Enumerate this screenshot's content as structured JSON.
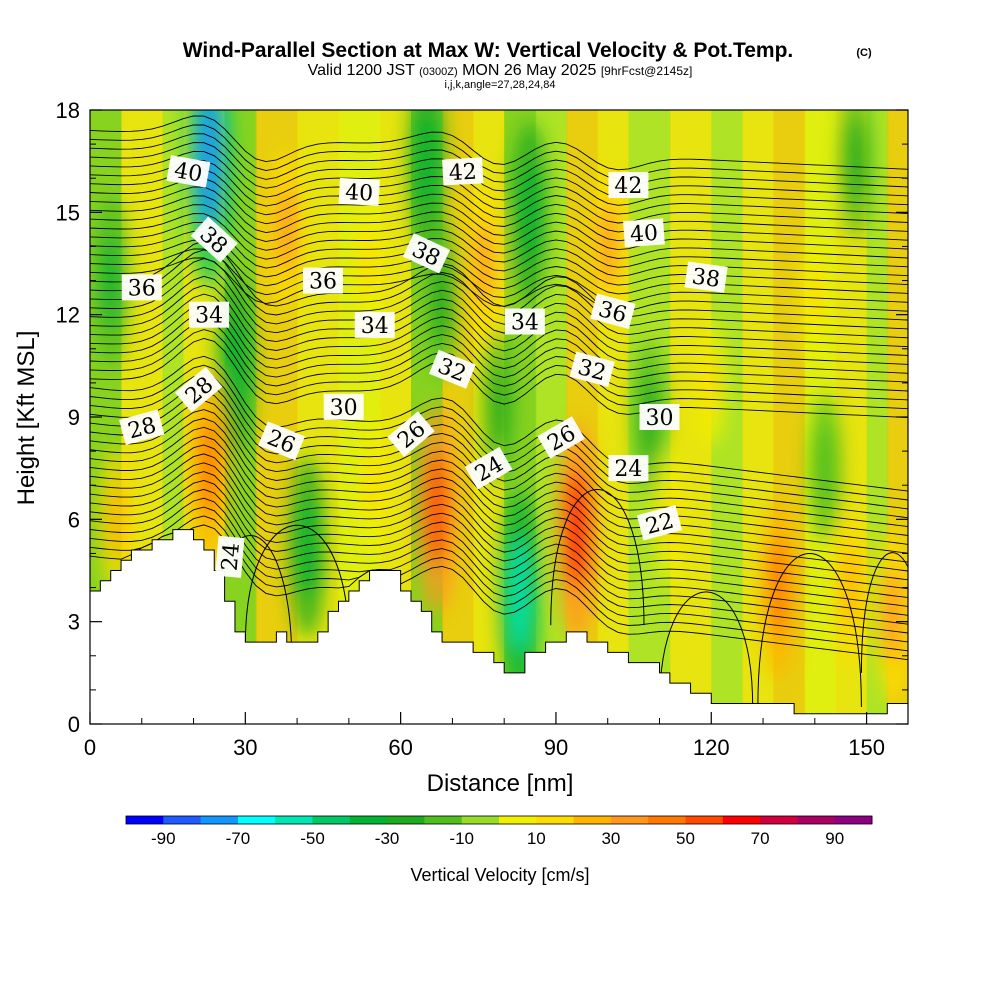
{
  "header": {
    "title": "Wind-Parallel Section at Max W: Vertical Velocity & Pot.Temp.",
    "copyright": "(C)",
    "valid_prefix": "Valid 1200 JST",
    "valid_utc": "(0300Z)",
    "valid_date": "MON 26 May 2025",
    "forecast_tag": "[9hrFcst@2145z]",
    "grid_info": "i,j,k,angle=27,28,24,84"
  },
  "chart_data": {
    "type": "heatmap",
    "title": "Wind-Parallel Section at Max W: Vertical Velocity & Pot.Temp.",
    "xlabel": "Distance [nm]",
    "ylabel": "Height [Kft MSL]",
    "xlim": [
      0,
      158
    ],
    "ylim": [
      0,
      18
    ],
    "x_ticks": [
      "0",
      "30",
      "60",
      "90",
      "120",
      "150"
    ],
    "y_ticks": [
      "0",
      "3",
      "6",
      "9",
      "12",
      "15",
      "18"
    ],
    "colorbar": {
      "label": "Vertical Velocity [cm/s]",
      "ticks": [
        "-90",
        "-70",
        "-50",
        "-30",
        "-10",
        "10",
        "30",
        "50",
        "70",
        "90"
      ],
      "levels": [
        -100,
        -90,
        -80,
        -70,
        -60,
        -50,
        -40,
        -30,
        -20,
        -10,
        0,
        10,
        20,
        30,
        40,
        50,
        60,
        70,
        80,
        90,
        100
      ],
      "colors": [
        "#0000ff",
        "#1e5aff",
        "#1496ff",
        "#00ffff",
        "#00e6b4",
        "#00c864",
        "#00b432",
        "#1eaa1e",
        "#50be1e",
        "#96dc28",
        "#f0f000",
        "#ffdc00",
        "#ffb400",
        "#ff961e",
        "#ff7800",
        "#ff4a00",
        "#ff0000",
        "#d2003c",
        "#aa0064",
        "#8c0082"
      ]
    },
    "terrain_kft": [
      [
        0,
        3.9
      ],
      [
        3,
        4.2
      ],
      [
        6,
        4.7
      ],
      [
        9,
        5.1
      ],
      [
        12,
        5.3
      ],
      [
        15,
        5.6
      ],
      [
        19,
        5.6
      ],
      [
        22,
        5.2
      ],
      [
        25,
        4.0
      ],
      [
        28,
        2.7
      ],
      [
        30,
        2.3
      ],
      [
        33,
        2.5
      ],
      [
        36,
        2.6
      ],
      [
        40,
        2.3
      ],
      [
        43,
        2.6
      ],
      [
        46,
        3.3
      ],
      [
        49,
        3.9
      ],
      [
        52,
        4.3
      ],
      [
        55,
        4.6
      ],
      [
        58,
        4.4
      ],
      [
        61,
        3.8
      ],
      [
        63,
        3.3
      ],
      [
        65,
        3.0
      ],
      [
        67,
        2.6
      ],
      [
        70,
        2.4
      ],
      [
        73,
        2.3
      ],
      [
        76,
        2.0
      ],
      [
        78,
        1.9
      ],
      [
        80,
        1.5
      ],
      [
        82,
        1.4
      ],
      [
        84,
        2.0
      ],
      [
        87,
        2.2
      ],
      [
        90,
        2.5
      ],
      [
        94,
        2.6
      ],
      [
        97,
        2.4
      ],
      [
        100,
        2.0
      ],
      [
        104,
        1.9
      ],
      [
        108,
        1.7
      ],
      [
        112,
        1.3
      ],
      [
        115,
        1.0
      ],
      [
        118,
        0.8
      ],
      [
        121,
        0.6
      ],
      [
        125,
        0.6
      ],
      [
        130,
        0.5
      ],
      [
        140,
        0.4
      ],
      [
        150,
        0.4
      ],
      [
        155,
        0.5
      ],
      [
        158,
        0.6
      ]
    ],
    "velocity_plumes": [
      {
        "x": 23,
        "z": 16.5,
        "w": -80
      },
      {
        "x": 28,
        "z": 10.5,
        "w": -40
      },
      {
        "x": 4,
        "z": 13.0,
        "w": -35
      },
      {
        "x": 23,
        "z": 7.5,
        "w": 45
      },
      {
        "x": 38,
        "z": 14.5,
        "w": 30
      },
      {
        "x": 42,
        "z": 5.2,
        "w": -40
      },
      {
        "x": 65,
        "z": 16.5,
        "w": -40
      },
      {
        "x": 68,
        "z": 12.5,
        "w": -30
      },
      {
        "x": 67,
        "z": 6.3,
        "w": 55
      },
      {
        "x": 85,
        "z": 15.0,
        "w": -40
      },
      {
        "x": 83,
        "z": 3.8,
        "w": -55
      },
      {
        "x": 79,
        "z": 9.3,
        "w": -25
      },
      {
        "x": 76,
        "z": 13.5,
        "w": 30
      },
      {
        "x": 94,
        "z": 5.7,
        "w": 60
      },
      {
        "x": 100,
        "z": 14.0,
        "w": 30
      },
      {
        "x": 108,
        "z": 9.0,
        "w": -25
      },
      {
        "x": 112,
        "z": 6.0,
        "w": 15
      },
      {
        "x": 120,
        "z": 10.0,
        "w": 10
      },
      {
        "x": 133,
        "z": 4.0,
        "w": 40
      },
      {
        "x": 147,
        "z": 4.0,
        "w": 25
      },
      {
        "x": 155,
        "z": 3.2,
        "w": 35
      },
      {
        "x": 140,
        "z": 12.5,
        "w": 10
      },
      {
        "x": 148,
        "z": 16.5,
        "w": -25
      },
      {
        "x": 142,
        "z": 7.5,
        "w": -20
      },
      {
        "x": 5,
        "z": 6.0,
        "w": 20
      },
      {
        "x": 54,
        "z": 13.5,
        "w": 15
      },
      {
        "x": 55,
        "z": 7.0,
        "w": 15
      }
    ],
    "potential_temperature_labels": [
      {
        "x": 19,
        "z": 16.2,
        "value": "40",
        "angle": 10
      },
      {
        "x": 52,
        "z": 15.6,
        "value": "40",
        "angle": 3
      },
      {
        "x": 72,
        "z": 16.2,
        "value": "42",
        "angle": -3
      },
      {
        "x": 104,
        "z": 15.8,
        "value": "42",
        "angle": 0
      },
      {
        "x": 107,
        "z": 14.4,
        "value": "40",
        "angle": -4
      },
      {
        "x": 24,
        "z": 14.2,
        "value": "38",
        "angle": 42
      },
      {
        "x": 65,
        "z": 13.8,
        "value": "38",
        "angle": 25
      },
      {
        "x": 119,
        "z": 13.1,
        "value": "38",
        "angle": 8
      },
      {
        "x": 10,
        "z": 12.8,
        "value": "36",
        "angle": 0
      },
      {
        "x": 45,
        "z": 13.0,
        "value": "36",
        "angle": 0
      },
      {
        "x": 101,
        "z": 12.1,
        "value": "36",
        "angle": 15
      },
      {
        "x": 23,
        "z": 12.0,
        "value": "34",
        "angle": 0
      },
      {
        "x": 55,
        "z": 11.7,
        "value": "34",
        "angle": 0
      },
      {
        "x": 84,
        "z": 11.8,
        "value": "34",
        "angle": 0
      },
      {
        "x": 70,
        "z": 10.4,
        "value": "32",
        "angle": 22
      },
      {
        "x": 97,
        "z": 10.4,
        "value": "32",
        "angle": 15
      },
      {
        "x": 49,
        "z": 9.3,
        "value": "30",
        "angle": 0
      },
      {
        "x": 110,
        "z": 9.0,
        "value": "30",
        "angle": 0
      },
      {
        "x": 21,
        "z": 9.8,
        "value": "28",
        "angle": -40
      },
      {
        "x": 10,
        "z": 8.7,
        "value": "28",
        "angle": -15
      },
      {
        "x": 37,
        "z": 8.3,
        "value": "26",
        "angle": 22
      },
      {
        "x": 62,
        "z": 8.5,
        "value": "26",
        "angle": -40
      },
      {
        "x": 91,
        "z": 8.4,
        "value": "26",
        "angle": -30
      },
      {
        "x": 77,
        "z": 7.5,
        "value": "24",
        "angle": -30
      },
      {
        "x": 104,
        "z": 7.5,
        "value": "24",
        "angle": 0
      },
      {
        "x": 27,
        "z": 4.9,
        "value": "24",
        "angle": -85
      },
      {
        "x": 110,
        "z": 5.9,
        "value": "22",
        "angle": -15
      }
    ]
  }
}
